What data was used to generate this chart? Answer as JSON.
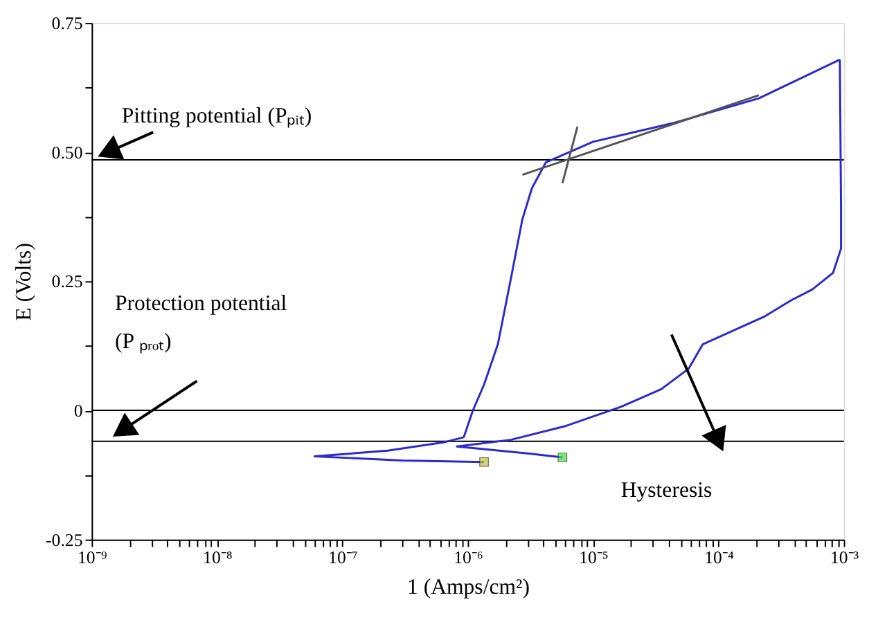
{
  "chart_data": {
    "type": "line",
    "xlabel": "1 (Amps/cm²)",
    "ylabel": "E (Volts)",
    "log": "x",
    "grid": false,
    "xlim": [
      1e-09,
      0.001
    ],
    "ylim": [
      -0.25,
      0.75
    ],
    "xticks": [
      {
        "value": 1e-09,
        "label": "10⁻⁹"
      },
      {
        "value": 2e-09,
        "label": null
      },
      {
        "value": 3e-09,
        "label": null
      },
      {
        "value": 4e-09,
        "label": null
      },
      {
        "value": 5e-09,
        "label": null
      },
      {
        "value": 6e-09,
        "label": null
      },
      {
        "value": 7e-09,
        "label": null
      },
      {
        "value": 8e-09,
        "label": null
      },
      {
        "value": 9e-09,
        "label": null
      },
      {
        "value": 1e-08,
        "label": "10⁻⁸"
      },
      {
        "value": 2e-08,
        "label": null
      },
      {
        "value": 3e-08,
        "label": null
      },
      {
        "value": 4e-08,
        "label": null
      },
      {
        "value": 5e-08,
        "label": null
      },
      {
        "value": 6e-08,
        "label": null
      },
      {
        "value": 7e-08,
        "label": null
      },
      {
        "value": 8e-08,
        "label": null
      },
      {
        "value": 9e-08,
        "label": null
      },
      {
        "value": 1e-07,
        "label": "10⁻⁷"
      },
      {
        "value": 2e-07,
        "label": null
      },
      {
        "value": 3e-07,
        "label": null
      },
      {
        "value": 4e-07,
        "label": null
      },
      {
        "value": 5e-07,
        "label": null
      },
      {
        "value": 6e-07,
        "label": null
      },
      {
        "value": 7e-07,
        "label": null
      },
      {
        "value": 8e-07,
        "label": null
      },
      {
        "value": 9e-07,
        "label": null
      },
      {
        "value": 1e-06,
        "label": "10⁻⁶"
      },
      {
        "value": 2e-06,
        "label": null
      },
      {
        "value": 3e-06,
        "label": null
      },
      {
        "value": 4e-06,
        "label": null
      },
      {
        "value": 5e-06,
        "label": null
      },
      {
        "value": 6e-06,
        "label": null
      },
      {
        "value": 7e-06,
        "label": null
      },
      {
        "value": 8e-06,
        "label": null
      },
      {
        "value": 9e-06,
        "label": null
      },
      {
        "value": 1e-05,
        "label": "10⁻⁵"
      },
      {
        "value": 2e-05,
        "label": null
      },
      {
        "value": 3e-05,
        "label": null
      },
      {
        "value": 4e-05,
        "label": null
      },
      {
        "value": 5e-05,
        "label": null
      },
      {
        "value": 6e-05,
        "label": null
      },
      {
        "value": 7e-05,
        "label": null
      },
      {
        "value": 8e-05,
        "label": null
      },
      {
        "value": 9e-05,
        "label": null
      },
      {
        "value": 0.0001,
        "label": "10⁻⁴"
      },
      {
        "value": 0.0002,
        "label": null
      },
      {
        "value": 0.0003,
        "label": null
      },
      {
        "value": 0.0004,
        "label": null
      },
      {
        "value": 0.0005,
        "label": null
      },
      {
        "value": 0.0006,
        "label": null
      },
      {
        "value": 0.0007,
        "label": null
      },
      {
        "value": 0.0008,
        "label": null
      },
      {
        "value": 0.0009,
        "label": null
      },
      {
        "value": 0.001,
        "label": "10⁻³"
      }
    ],
    "yticks": [
      {
        "value": -0.25,
        "label": "-0.25"
      },
      {
        "value": -0.125,
        "label": null
      },
      {
        "value": 0,
        "label": "0"
      },
      {
        "value": 0.125,
        "label": null
      },
      {
        "value": 0.25,
        "label": "0.25"
      },
      {
        "value": 0.375,
        "label": null
      },
      {
        "value": 0.5,
        "label": "0.50"
      },
      {
        "value": 0.625,
        "label": null
      },
      {
        "value": 0.75,
        "label": "0.75"
      }
    ],
    "ref_lines": [
      {
        "axis": "y",
        "value": 0.485,
        "color": "#000000"
      },
      {
        "axis": "y",
        "value": 0,
        "color": "#000000"
      },
      {
        "axis": "y",
        "value": -0.06,
        "color": "#000000"
      }
    ],
    "annotations": [
      "Pitting potential (Pₚᵢₜ)",
      "Protection potential\n(P ₚᵣₒₜ)",
      "Hysteresis"
    ],
    "series": [
      {
        "type": "line",
        "color": "#2a2ad0",
        "marker": "none",
        "x": [
          1.35e-06,
          3e-07,
          6e-08,
          2.3e-07,
          6.4e-07,
          9.3e-07,
          1.1e-06,
          1.35e-06,
          1.74e-06,
          2.23e-06,
          2.73e-06,
          3.25e-06,
          4.2e-06,
          1e-05,
          4.5e-05,
          0.00021,
          0.00093
        ],
        "values": [
          -0.1,
          -0.097,
          -0.089,
          -0.078,
          -0.062,
          -0.052,
          0.0,
          0.05,
          0.128,
          0.26,
          0.37,
          0.43,
          0.48,
          0.52,
          0.557,
          0.604,
          0.679
        ]
      },
      {
        "type": "line",
        "color": "#2a2ad0",
        "marker": "none",
        "x": [
          0.00093,
          0.00095,
          0.00095,
          0.00082,
          0.00056,
          0.00038,
          0.00023,
          7.5e-05,
          5.8e-05,
          3.5e-05,
          1.67e-05,
          6.1e-06,
          2.2e-06,
          8.2e-07,
          2.9e-06,
          5.7e-06
        ],
        "values": [
          0.679,
          0.393,
          0.313,
          0.266,
          0.234,
          0.213,
          0.181,
          0.128,
          0.081,
          0.041,
          0.007,
          -0.03,
          -0.057,
          -0.07,
          -0.083,
          -0.091
        ]
      },
      {
        "type": "line",
        "color": "#555555",
        "marker": "none",
        "x": [
          2.73e-06,
          0.00021
        ],
        "values": [
          0.456,
          0.61
        ]
      },
      {
        "type": "line",
        "color": "#555555",
        "marker": "none",
        "x": [
          5.7e-06,
          7.5e-06
        ],
        "values": [
          0.44,
          0.549
        ]
      },
      {
        "type": "scatter",
        "color": "#c8c040",
        "marker": "square",
        "x": [
          1.35e-06
        ],
        "values": [
          -0.1
        ]
      },
      {
        "type": "scatter",
        "color": "#40e040",
        "marker": "square",
        "x": [
          5.7e-06
        ],
        "values": [
          -0.091
        ]
      }
    ]
  }
}
